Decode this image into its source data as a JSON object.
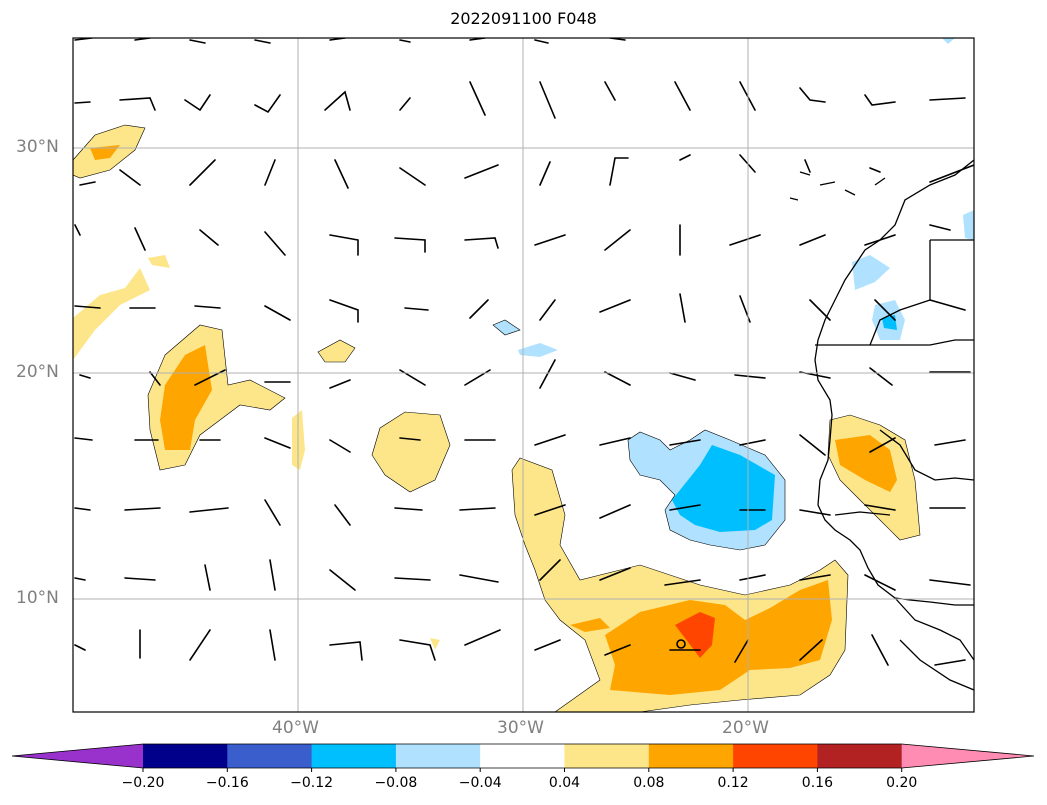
{
  "title": "2022091100 F048",
  "lat_labels": [
    "30°N",
    "20°N",
    "10°N"
  ],
  "lon_labels": [
    "40°W",
    "30°W",
    "20°W"
  ],
  "colorbar": {
    "colors": [
      "#9932cc",
      "#00008b",
      "#3a5fcd",
      "#00bfff",
      "#b0e2ff",
      "#ffffff",
      "#fde68a",
      "#ffa500",
      "#ff4500",
      "#b22222",
      "#ff8cb3"
    ],
    "ticks": [
      "−0.20",
      "−0.16",
      "−0.12",
      "−0.08",
      "−0.04",
      "0.04",
      "0.08",
      "0.12",
      "0.16",
      "0.20"
    ]
  },
  "map_colors": {
    "light_yellow": "#fde68a",
    "orange": "#ffa500",
    "red_orange": "#ff4500",
    "light_blue": "#b0e2ff",
    "blue": "#00bfff",
    "grid": "#b0b0b0",
    "coast": "#000000"
  }
}
